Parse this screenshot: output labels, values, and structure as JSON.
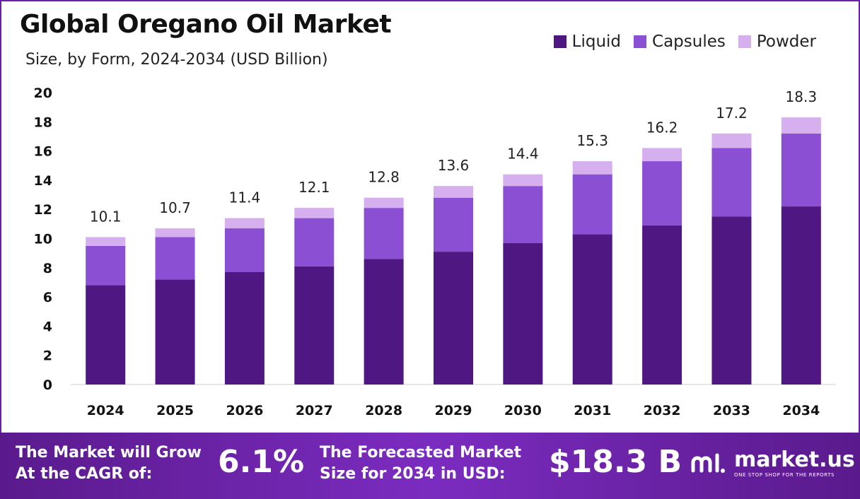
{
  "title": "Global Oregano Oil Market",
  "subtitle": "Size, by Form, 2024-2034 (USD Billion)",
  "colors": {
    "liquid": "#4e1781",
    "capsules": "#8b4fd4",
    "powder": "#d6b0ee",
    "banner": "#6a23a8"
  },
  "chart_data": {
    "type": "bar",
    "stacked": true,
    "categories": [
      "2024",
      "2025",
      "2026",
      "2027",
      "2028",
      "2029",
      "2030",
      "2031",
      "2032",
      "2033",
      "2034"
    ],
    "series": [
      {
        "name": "Liquid",
        "values": [
          6.8,
          7.2,
          7.7,
          8.1,
          8.6,
          9.1,
          9.7,
          10.3,
          10.9,
          11.5,
          12.2
        ]
      },
      {
        "name": "Capsules",
        "values": [
          2.7,
          2.9,
          3.0,
          3.3,
          3.5,
          3.7,
          3.9,
          4.1,
          4.4,
          4.7,
          5.0
        ]
      },
      {
        "name": "Powder",
        "values": [
          0.6,
          0.6,
          0.7,
          0.7,
          0.7,
          0.8,
          0.8,
          0.9,
          0.9,
          1.0,
          1.1
        ]
      }
    ],
    "totals": [
      "10.1",
      "10.7",
      "11.4",
      "12.1",
      "12.8",
      "13.6",
      "14.4",
      "15.3",
      "16.2",
      "17.2",
      "18.3"
    ],
    "yticks": [
      "0",
      "2",
      "4",
      "6",
      "8",
      "10",
      "12",
      "14",
      "16",
      "18",
      "20"
    ],
    "ylim": [
      0,
      20
    ],
    "grid": false,
    "legend_position": "top-right"
  },
  "banner": {
    "cagr_label_line1": "The Market will Grow",
    "cagr_label_line2": "At the CAGR of:",
    "cagr_value": "6.1%",
    "forecast_label_line1": "The Forecasted Market",
    "forecast_label_line2": "Size for 2034 in USD:",
    "forecast_value": "$18.3 B",
    "brand_name": "market.us",
    "brand_tagline": "ONE STOP SHOP FOR THE REPORTS"
  }
}
